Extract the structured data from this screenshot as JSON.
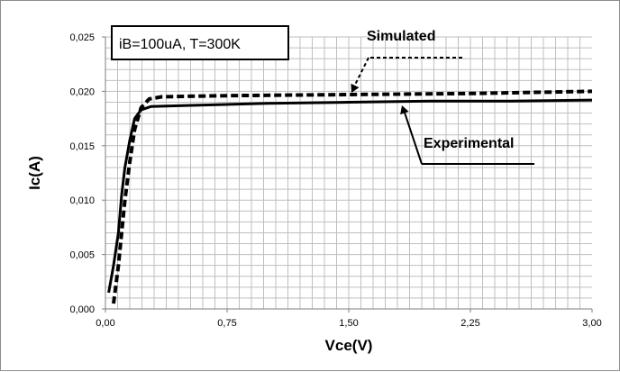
{
  "chart_data": {
    "type": "line",
    "title": "",
    "xlabel": "Vce(V)",
    "ylabel": "Ic(A)",
    "xlim": [
      0,
      3.0
    ],
    "ylim": [
      0,
      0.025
    ],
    "x_ticks": [
      "0,00",
      "0,75",
      "1,50",
      "2,25",
      "3,00"
    ],
    "y_ticks": [
      "0,000",
      "0,005",
      "0,010",
      "0,015",
      "0,020",
      "0,025"
    ],
    "grid": true,
    "conditions_label": "iB=100uA, T=300K",
    "series": [
      {
        "name": "Experimental",
        "style": "solid",
        "color": "#000000",
        "points": [
          [
            0.02,
            0.0015
          ],
          [
            0.05,
            0.004
          ],
          [
            0.08,
            0.007
          ],
          [
            0.1,
            0.0105
          ],
          [
            0.12,
            0.013
          ],
          [
            0.15,
            0.0155
          ],
          [
            0.18,
            0.0175
          ],
          [
            0.22,
            0.0183
          ],
          [
            0.28,
            0.0186
          ],
          [
            0.5,
            0.0187
          ],
          [
            1.0,
            0.0189
          ],
          [
            1.5,
            0.019
          ],
          [
            2.0,
            0.0191
          ],
          [
            2.5,
            0.0191
          ],
          [
            3.0,
            0.0192
          ]
        ]
      },
      {
        "name": "Simulated",
        "style": "dashed",
        "color": "#000000",
        "points": [
          [
            0.05,
            0.0005
          ],
          [
            0.08,
            0.004
          ],
          [
            0.1,
            0.007
          ],
          [
            0.12,
            0.01
          ],
          [
            0.15,
            0.0135
          ],
          [
            0.18,
            0.0165
          ],
          [
            0.22,
            0.0185
          ],
          [
            0.27,
            0.0193
          ],
          [
            0.35,
            0.0195
          ],
          [
            0.75,
            0.0196
          ],
          [
            1.5,
            0.0197
          ],
          [
            2.25,
            0.0198
          ],
          [
            3.0,
            0.02
          ]
        ]
      }
    ],
    "annotations": [
      {
        "text": "Simulated",
        "target": "Simulated"
      },
      {
        "text": "Experimental",
        "target": "Experimental"
      }
    ]
  }
}
